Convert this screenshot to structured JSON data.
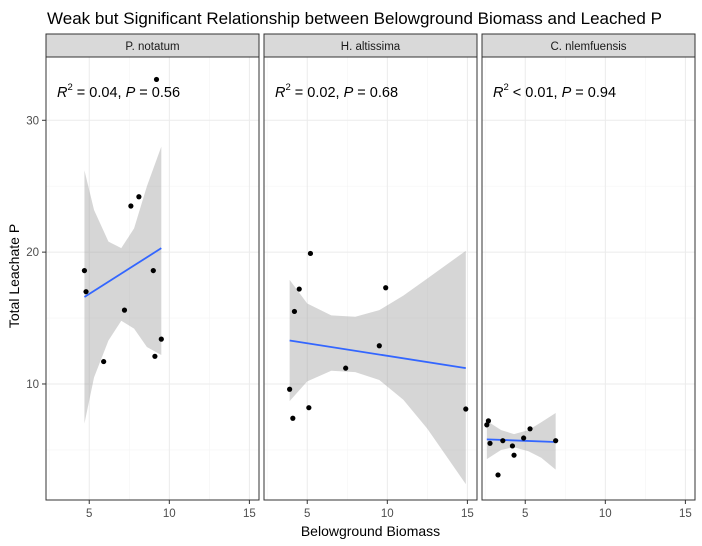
{
  "chart_data": {
    "type": "scatter",
    "title": "Weak but Significant Relationship between Belowground Biomass and Leached P",
    "xlabel": "Belowground Biomass",
    "ylabel": "Total Leachate P",
    "xlim": [
      2.3,
      15.6
    ],
    "ylim": [
      1.2,
      34.8
    ],
    "x_ticks": [
      5,
      10,
      15
    ],
    "y_ticks": [
      10,
      20,
      30
    ],
    "grid": true,
    "colors": {
      "points": "#000000",
      "fit_line": "#3366FF",
      "ribbon": "#999999",
      "strip_fill": "#D9D9D9",
      "panel_border": "#333333"
    },
    "panels": [
      {
        "name": "P. notatum",
        "annotation": {
          "r2_op": "=",
          "r2_value": "0.04",
          "p_value": "0.56"
        },
        "points": [
          {
            "x": 4.7,
            "y": 18.6
          },
          {
            "x": 4.8,
            "y": 17.0
          },
          {
            "x": 5.9,
            "y": 11.7
          },
          {
            "x": 7.2,
            "y": 15.6
          },
          {
            "x": 7.6,
            "y": 23.5
          },
          {
            "x": 8.1,
            "y": 24.2
          },
          {
            "x": 9.0,
            "y": 18.6
          },
          {
            "x": 9.1,
            "y": 12.1
          },
          {
            "x": 9.2,
            "y": 33.1
          },
          {
            "x": 9.5,
            "y": 13.4
          }
        ],
        "fit": {
          "x": [
            4.7,
            9.5
          ],
          "y": [
            16.6,
            20.3
          ]
        },
        "band": [
          {
            "x": 4.7,
            "lo": 7.0,
            "hi": 26.2
          },
          {
            "x": 5.3,
            "lo": 10.5,
            "hi": 23.2
          },
          {
            "x": 6.2,
            "lo": 13.3,
            "hi": 20.8
          },
          {
            "x": 7.0,
            "lo": 14.8,
            "hi": 20.3
          },
          {
            "x": 7.8,
            "lo": 14.2,
            "hi": 21.8
          },
          {
            "x": 8.6,
            "lo": 12.8,
            "hi": 25.0
          },
          {
            "x": 9.5,
            "lo": 12.2,
            "hi": 28.0
          }
        ]
      },
      {
        "name": "H. altissima",
        "annotation": {
          "r2_op": "=",
          "r2_value": "0.02",
          "p_value": "0.68"
        },
        "points": [
          {
            "x": 3.9,
            "y": 9.6
          },
          {
            "x": 4.1,
            "y": 7.4
          },
          {
            "x": 4.2,
            "y": 15.5
          },
          {
            "x": 4.5,
            "y": 17.2
          },
          {
            "x": 5.1,
            "y": 8.2
          },
          {
            "x": 5.2,
            "y": 19.9
          },
          {
            "x": 7.4,
            "y": 11.2
          },
          {
            "x": 9.5,
            "y": 12.9
          },
          {
            "x": 9.9,
            "y": 17.3
          },
          {
            "x": 14.9,
            "y": 8.1
          }
        ],
        "fit": {
          "x": [
            3.9,
            14.9
          ],
          "y": [
            13.3,
            11.2
          ]
        },
        "band": [
          {
            "x": 3.9,
            "lo": 8.7,
            "hi": 17.9
          },
          {
            "x": 5.0,
            "lo": 10.2,
            "hi": 16.1
          },
          {
            "x": 6.5,
            "lo": 11.0,
            "hi": 15.2
          },
          {
            "x": 8.0,
            "lo": 10.9,
            "hi": 15.1
          },
          {
            "x": 9.5,
            "lo": 10.3,
            "hi": 15.6
          },
          {
            "x": 11.0,
            "lo": 8.8,
            "hi": 16.7
          },
          {
            "x": 12.5,
            "lo": 6.6,
            "hi": 18.0
          },
          {
            "x": 14.9,
            "lo": 2.4,
            "hi": 20.1
          }
        ]
      },
      {
        "name": "C. nlemfuensis",
        "annotation": {
          "r2_op": "<",
          "r2_value": "0.01",
          "p_value": "0.94"
        },
        "points": [
          {
            "x": 2.6,
            "y": 6.9
          },
          {
            "x": 2.7,
            "y": 7.2
          },
          {
            "x": 2.8,
            "y": 5.5
          },
          {
            "x": 3.3,
            "y": 3.1
          },
          {
            "x": 3.6,
            "y": 5.7
          },
          {
            "x": 4.2,
            "y": 5.3
          },
          {
            "x": 4.3,
            "y": 4.6
          },
          {
            "x": 4.9,
            "y": 5.9
          },
          {
            "x": 5.3,
            "y": 6.6
          },
          {
            "x": 6.9,
            "y": 5.7
          }
        ],
        "fit": {
          "x": [
            2.6,
            6.9
          ],
          "y": [
            5.8,
            5.6
          ]
        },
        "band": [
          {
            "x": 2.6,
            "lo": 4.3,
            "hi": 7.2
          },
          {
            "x": 3.5,
            "lo": 5.0,
            "hi": 6.5
          },
          {
            "x": 4.3,
            "lo": 5.2,
            "hi": 6.2
          },
          {
            "x": 5.2,
            "lo": 4.9,
            "hi": 6.5
          },
          {
            "x": 6.0,
            "lo": 4.4,
            "hi": 7.1
          },
          {
            "x": 6.9,
            "lo": 3.5,
            "hi": 7.8
          }
        ]
      }
    ]
  }
}
